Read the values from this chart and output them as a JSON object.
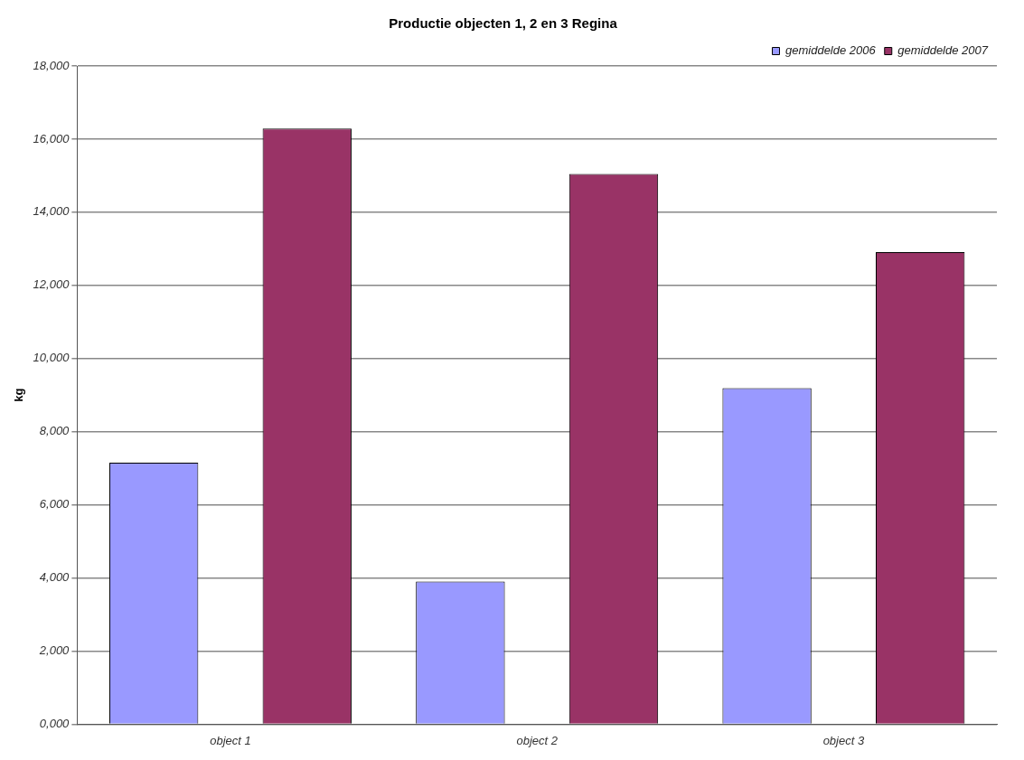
{
  "chart_data": {
    "type": "bar",
    "title": "Productie objecten 1, 2 en 3 Regina",
    "ylabel": "kg",
    "categories": [
      "object 1",
      "object 2",
      "object 3"
    ],
    "series": [
      {
        "name": "gemiddelde 2006",
        "color": "#9999ff",
        "values": [
          7150,
          3900,
          9190
        ]
      },
      {
        "name": "gemiddelde 2007",
        "color": "#993366",
        "values": [
          16290,
          15050,
          12910
        ]
      }
    ],
    "ylim": [
      0,
      18000
    ],
    "yticks": [
      {
        "value": 0,
        "label": "0,000"
      },
      {
        "value": 2000,
        "label": "2,000"
      },
      {
        "value": 4000,
        "label": "4,000"
      },
      {
        "value": 6000,
        "label": "6,000"
      },
      {
        "value": 8000,
        "label": "8,000"
      },
      {
        "value": 10000,
        "label": "10,000"
      },
      {
        "value": 12000,
        "label": "12,000"
      },
      {
        "value": 14000,
        "label": "14,000"
      },
      {
        "value": 16000,
        "label": "16,000"
      },
      {
        "value": 18000,
        "label": "18,000"
      }
    ],
    "grid": "y",
    "legend": "top right"
  }
}
